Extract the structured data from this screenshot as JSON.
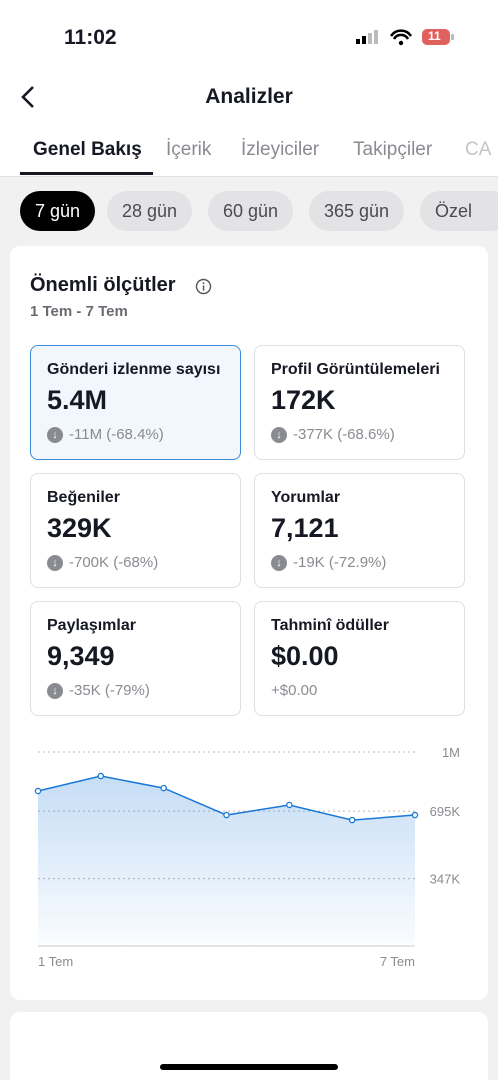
{
  "status_bar": {
    "time": "11:02",
    "battery": "11"
  },
  "header": {
    "title": "Analizler"
  },
  "tabs": [
    "Genel Bakış",
    "İçerik",
    "İzleyiciler",
    "Takipçiler",
    "CA"
  ],
  "periods": [
    "7 gün",
    "28 gün",
    "60 gün",
    "365 gün",
    "Özel"
  ],
  "section": {
    "title": "Önemli ölçütler",
    "date_range": "1 Tem - 7 Tem"
  },
  "metrics": [
    {
      "label": "Gönderi izlenme sayısı",
      "value": "5.4M",
      "change": "-11M (-68.4%)"
    },
    {
      "label": "Profil Görüntülemeleri",
      "value": "172K",
      "change": "-377K (-68.6%)"
    },
    {
      "label": "Beğeniler",
      "value": "329K",
      "change": "-700K (-68%)"
    },
    {
      "label": "Yorumlar",
      "value": "7,121",
      "change": "-19K (-72.9%)"
    },
    {
      "label": "Paylaşımlar",
      "value": "9,349",
      "change": "-35K (-79%)"
    },
    {
      "label": "Tahminî ödüller",
      "value": "$0.00",
      "change": "+$0.00"
    }
  ],
  "chart_data": {
    "type": "line",
    "x": [
      "1 Tem",
      null,
      null,
      null,
      null,
      null,
      "7 Tem"
    ],
    "values": [
      799000,
      876000,
      814000,
      675000,
      727000,
      649000,
      675000
    ],
    "color": "#1a78d6",
    "ylim": [
      0,
      1000000
    ],
    "yticks": [
      {
        "value": 1000000,
        "label": "1M"
      },
      {
        "value": 695000,
        "label": "695K"
      },
      {
        "value": 347000,
        "label": "347K"
      }
    ],
    "grid": true
  }
}
